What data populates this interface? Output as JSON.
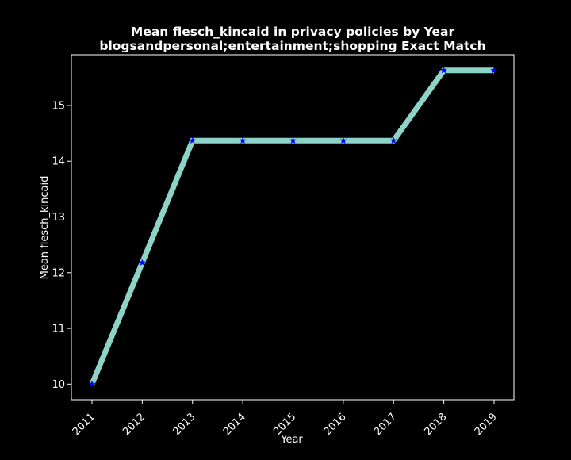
{
  "chart_data": {
    "type": "line",
    "title": "Mean flesch_kincaid in privacy policies by Year",
    "subtitle": "blogsandpersonal;entertainment;shopping Exact Match",
    "xlabel": "Year",
    "ylabel": "Mean flesch_kincaid",
    "x": [
      "2011",
      "2012",
      "2013",
      "2014",
      "2015",
      "2016",
      "2017",
      "2018",
      "2019"
    ],
    "y": [
      10.0,
      12.18,
      14.37,
      14.37,
      14.37,
      14.37,
      14.37,
      15.63,
      15.63
    ],
    "yticks": [
      10,
      11,
      12,
      13,
      14,
      15
    ],
    "ylim": [
      9.72,
      15.91
    ],
    "grid": false,
    "legend": "none",
    "colors": {
      "background": "#000000",
      "line": "#8dd3c7",
      "marker": "#0000ff",
      "text": "#ffffff",
      "axes": "#ffffff"
    },
    "marker": "star"
  }
}
